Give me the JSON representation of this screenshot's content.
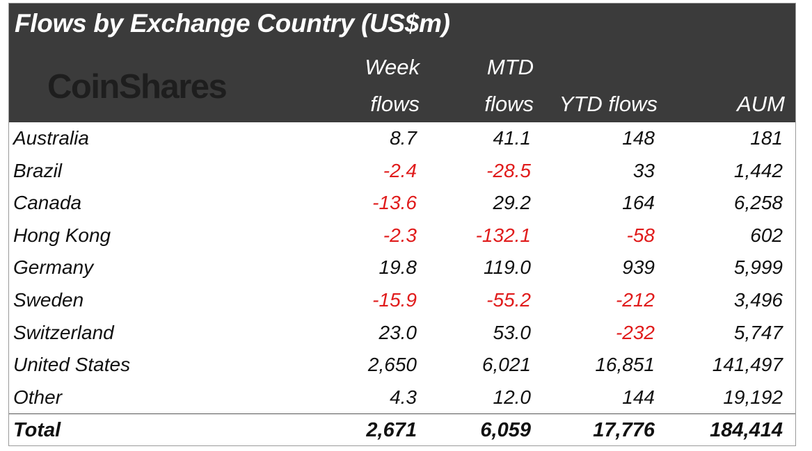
{
  "title": "Flows by Exchange Country (US$m)",
  "logo_text": "CoinShares",
  "columns": [
    {
      "line1": "Week",
      "line2": "flows"
    },
    {
      "line1": "MTD",
      "line2": "flows"
    },
    {
      "line1": "",
      "line2": "YTD flows"
    },
    {
      "line1": "",
      "line2": "AUM"
    }
  ],
  "rows": [
    {
      "country": "Australia",
      "week": "8.7",
      "mtd": "41.1",
      "ytd": "148",
      "aum": "181"
    },
    {
      "country": "Brazil",
      "week": "-2.4",
      "mtd": "-28.5",
      "ytd": "33",
      "aum": "1,442"
    },
    {
      "country": "Canada",
      "week": "-13.6",
      "mtd": "29.2",
      "ytd": "164",
      "aum": "6,258"
    },
    {
      "country": "Hong Kong",
      "week": "-2.3",
      "mtd": "-132.1",
      "ytd": "-58",
      "aum": "602"
    },
    {
      "country": "Germany",
      "week": "19.8",
      "mtd": "119.0",
      "ytd": "939",
      "aum": "5,999"
    },
    {
      "country": "Sweden",
      "week": "-15.9",
      "mtd": "-55.2",
      "ytd": "-212",
      "aum": "3,496"
    },
    {
      "country": "Switzerland",
      "week": "23.0",
      "mtd": "53.0",
      "ytd": "-232",
      "aum": "5,747"
    },
    {
      "country": "United States",
      "week": "2,650",
      "mtd": "6,021",
      "ytd": "16,851",
      "aum": "141,497"
    },
    {
      "country": "Other",
      "week": "4.3",
      "mtd": "12.0",
      "ytd": "144",
      "aum": "19,192"
    }
  ],
  "total": {
    "label": "Total",
    "week": "2,671",
    "mtd": "6,059",
    "ytd": "17,776",
    "aum": "184,414"
  },
  "colors": {
    "header_bg": "#3b3b3b",
    "header_text": "#ffffff",
    "negative": "#e01b1b",
    "text": "#111111"
  },
  "chart_data": {
    "type": "table",
    "title": "Flows by Exchange Country (US$m)",
    "columns": [
      "",
      "Week flows",
      "MTD flows",
      "YTD flows",
      "AUM"
    ],
    "rows": [
      [
        "Australia",
        8.7,
        41.1,
        148,
        181
      ],
      [
        "Brazil",
        -2.4,
        -28.5,
        33,
        1442
      ],
      [
        "Canada",
        -13.6,
        29.2,
        164,
        6258
      ],
      [
        "Hong Kong",
        -2.3,
        -132.1,
        -58,
        602
      ],
      [
        "Germany",
        19.8,
        119.0,
        939,
        5999
      ],
      [
        "Sweden",
        -15.9,
        -55.2,
        -212,
        3496
      ],
      [
        "Switzerland",
        23.0,
        53.0,
        -232,
        5747
      ],
      [
        "United States",
        2650,
        6021,
        16851,
        141497
      ],
      [
        "Other",
        4.3,
        12.0,
        144,
        19192
      ],
      [
        "Total",
        2671,
        6059,
        17776,
        184414
      ]
    ]
  }
}
